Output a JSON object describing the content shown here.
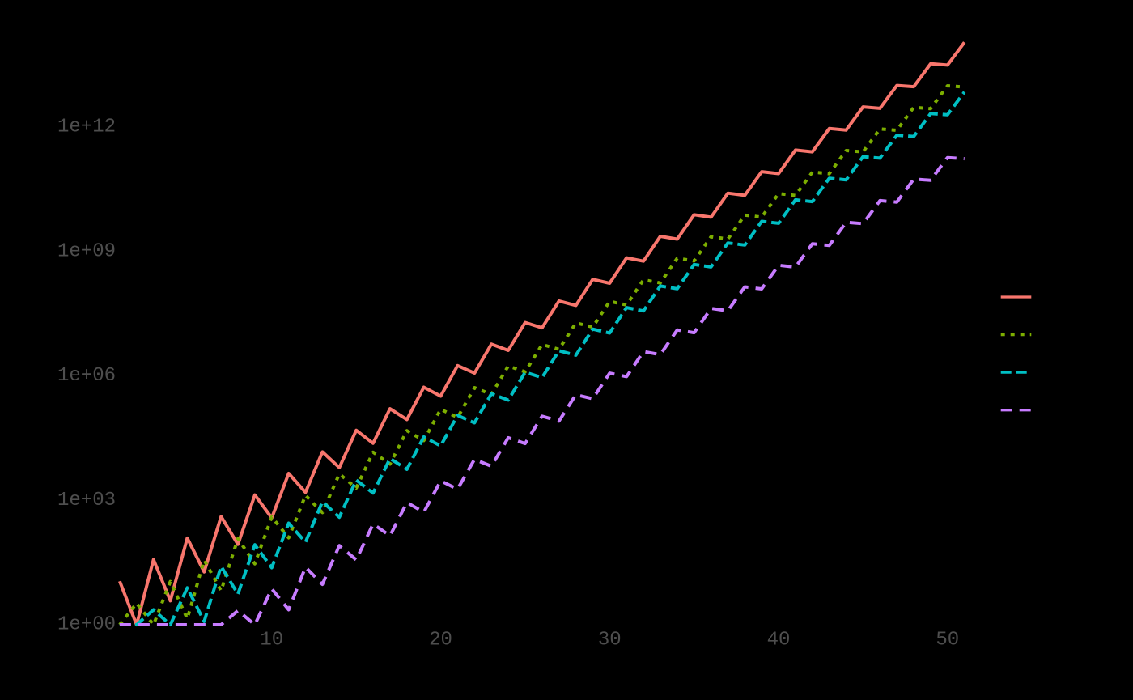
{
  "chart_data": {
    "type": "line",
    "title": "",
    "xlabel": "",
    "ylabel": "",
    "grid": false,
    "background_color": "#000000",
    "axis_text_color": "#4e4e4e",
    "y_scale": "log10",
    "xlim": [
      1,
      51
    ],
    "ylim": [
      1,
      130000000000000.0
    ],
    "x_ticks": [
      {
        "value": 10,
        "label": "10"
      },
      {
        "value": 20,
        "label": "20"
      },
      {
        "value": 30,
        "label": "30"
      },
      {
        "value": 40,
        "label": "40"
      },
      {
        "value": 50,
        "label": "50"
      }
    ],
    "y_ticks": [
      {
        "value": 1,
        "label": "1e+00"
      },
      {
        "value": 1000.0,
        "label": "1e+03"
      },
      {
        "value": 1000000.0,
        "label": "1e+06"
      },
      {
        "value": 1000000000.0,
        "label": "1e+09"
      },
      {
        "value": 1000000000000.0,
        "label": "1e+12"
      }
    ],
    "legend_position": "right",
    "legend_labels_visible": false,
    "x_start": 1,
    "x_step": 1,
    "series": [
      {
        "name": "salmon-solid",
        "color": "#F8766D",
        "linetype": "solid",
        "values": [
          11.2,
          1,
          37.2,
          3.78,
          123,
          18.8,
          407,
          86.9,
          1350,
          378,
          4470,
          1560,
          14800,
          6190,
          49000,
          23800,
          162000,
          89100,
          537000,
          327000,
          1780000.0,
          1170000.0,
          5890000.0,
          4150000.0,
          19500000.0,
          14500000.0,
          64600000.0,
          50400000.0,
          214000000.0,
          173000000.0,
          708000000.0,
          590000000.0,
          2340000000.0,
          2000000000.0,
          7760000000.0,
          6760000000.0,
          25700000000.0,
          22800000000.0,
          85100000000.0,
          76400000000.0,
          282000000000.0,
          256000000000.0,
          933000000000.0,
          855000000000.0,
          3090000000000.0,
          2850000000000.0,
          10200000000000.0,
          9510000000000.0,
          33900000000000.0,
          31600000000000.0,
          112000000000000.0
        ]
      },
      {
        "name": "green-dotted",
        "color": "#7CAE00",
        "linetype": "dotted",
        "values": [
          1,
          3.3,
          1,
          11,
          1.4,
          36.3,
          6.6,
          120,
          29.5,
          398,
          125,
          1320,
          507,
          4370,
          1980,
          14500,
          7500,
          47900,
          27700,
          158000,
          100000,
          525000,
          359000,
          1740000.0,
          1260000.0,
          5750000.0,
          4400000.0,
          19100000.0,
          15100000.0,
          63100000.0,
          51900000.0,
          209000000.0,
          176000000.0,
          692000000.0,
          597000000.0,
          2290000000.0,
          2010000000.0,
          7590000000.0,
          6780000000.0,
          25100000000.0,
          22700000000.0,
          83200000000.0,
          75900000000.0,
          275000000000.0,
          254000000000.0,
          912000000000.0,
          845000000000.0,
          3020000000000.0,
          2810000000000.0,
          10000000000000.0,
          9360000000000.0
        ]
      },
      {
        "name": "cyan-dashed",
        "color": "#00BFC4",
        "linetype": "dashed",
        "values": [
          1,
          1,
          2.3,
          1,
          7.8,
          1.2,
          25.7,
          5.5,
          85,
          23.8,
          282,
          98,
          933,
          391,
          3090,
          1500,
          10200,
          5620,
          33900,
          20600,
          112000,
          74000,
          372000,
          262000,
          1230000.0,
          916000.0,
          4070000.0,
          3180000.0,
          13500000.0,
          10900000.0,
          44700000.0,
          37200000.0,
          148000000.0,
          127000000.0,
          490000000.0,
          427000000.0,
          1620000000.0,
          1440000000.0,
          5370000000.0,
          4820000000.0,
          17800000000.0,
          16100000000.0,
          58900000000.0,
          54000000000.0,
          195000000000.0,
          180000000000.0,
          646000000000.0,
          600000000000.0,
          2140000000000.0,
          2000000000000.0,
          7080000000000.0
        ]
      },
      {
        "name": "purple-longdash",
        "color": "#C77CFF",
        "linetype": "longdash",
        "values": [
          1,
          1,
          1,
          1,
          1,
          1,
          1,
          2.2,
          1,
          7.4,
          2.3,
          24.5,
          9.4,
          81,
          36.8,
          269,
          140,
          891,
          516,
          2950,
          1870,
          9770,
          6680,
          32400,
          23500,
          107000,
          81900,
          355000,
          282000,
          1170000.0,
          966000.0,
          3890000.0,
          3280000.0,
          12900000.0,
          11100000.0,
          42700000.0,
          37500000.0,
          141000000.0,
          126000000.0,
          468000000.0,
          423000000.0,
          1550000000.0,
          1410000000.0,
          5130000000.0,
          4720000000.0,
          17000000000.0,
          15700000000.0,
          56200000000.0,
          52400000000.0,
          186000000000.0,
          174000000000.0
        ]
      }
    ]
  }
}
